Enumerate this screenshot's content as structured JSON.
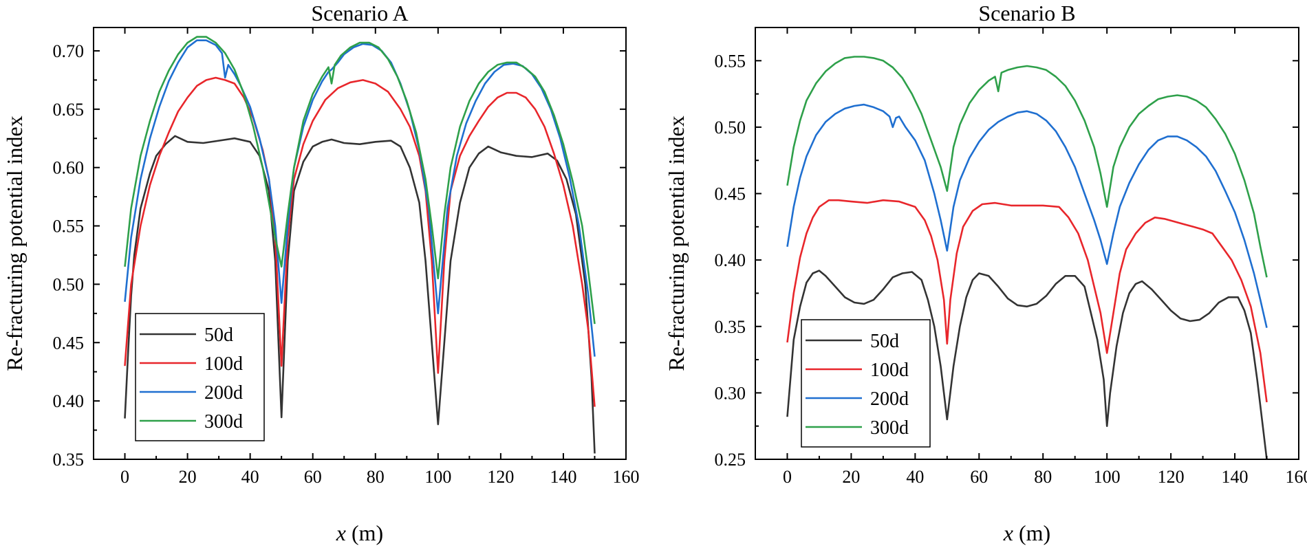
{
  "chart_data": [
    {
      "type": "line",
      "title": "Scenario A",
      "xlabel_var": "x",
      "xlabel_unit": " (m)",
      "ylabel": "Re-fracturing potential index",
      "xlim": [
        -10,
        160
      ],
      "ylim": [
        0.35,
        0.72
      ],
      "xticks": [
        0,
        20,
        40,
        60,
        80,
        100,
        120,
        140,
        160
      ],
      "yticks": [
        0.35,
        0.4,
        0.45,
        0.5,
        0.55,
        0.6,
        0.65,
        0.7
      ],
      "ytick_labels": [
        "0.35",
        "0.40",
        "0.45",
        "0.50",
        "0.55",
        "0.60",
        "0.65",
        "0.70"
      ],
      "legend_position": "bottom-left",
      "series": [
        {
          "name": "50d",
          "color": "#333333",
          "x": [
            0,
            1,
            2,
            3,
            5,
            8,
            10,
            13,
            16,
            20,
            25,
            30,
            35,
            40,
            43,
            46,
            48,
            50,
            52,
            54,
            57,
            60,
            63,
            66,
            70,
            75,
            80,
            85,
            88,
            91,
            94,
            96,
            98,
            100,
            102,
            104,
            107,
            110,
            113,
            116,
            120,
            125,
            130,
            135,
            138,
            141,
            144,
            147,
            149,
            150
          ],
          "y": [
            0.385,
            0.44,
            0.49,
            0.525,
            0.565,
            0.595,
            0.61,
            0.62,
            0.627,
            0.622,
            0.621,
            0.623,
            0.625,
            0.622,
            0.61,
            0.58,
            0.52,
            0.386,
            0.52,
            0.58,
            0.605,
            0.618,
            0.622,
            0.624,
            0.621,
            0.62,
            0.622,
            0.623,
            0.618,
            0.6,
            0.57,
            0.52,
            0.45,
            0.38,
            0.45,
            0.52,
            0.57,
            0.6,
            0.612,
            0.618,
            0.613,
            0.61,
            0.609,
            0.612,
            0.606,
            0.59,
            0.56,
            0.5,
            0.42,
            0.355
          ]
        },
        {
          "name": "100d",
          "color": "#E8262B",
          "x": [
            0,
            2,
            5,
            8,
            11,
            14,
            17,
            20,
            23,
            26,
            29,
            32,
            35,
            38,
            41,
            44,
            46,
            48,
            50,
            52,
            54,
            57,
            60,
            64,
            68,
            72,
            76,
            80,
            84,
            88,
            91,
            94,
            96,
            98,
            100,
            102,
            104,
            107,
            110,
            113,
            116,
            119,
            122,
            125,
            128,
            131,
            134,
            137,
            140,
            143,
            146,
            148,
            150
          ],
          "y": [
            0.43,
            0.5,
            0.55,
            0.585,
            0.61,
            0.63,
            0.648,
            0.66,
            0.67,
            0.675,
            0.677,
            0.675,
            0.672,
            0.66,
            0.642,
            0.615,
            0.59,
            0.54,
            0.43,
            0.54,
            0.59,
            0.62,
            0.64,
            0.658,
            0.668,
            0.673,
            0.675,
            0.672,
            0.665,
            0.65,
            0.635,
            0.61,
            0.58,
            0.52,
            0.424,
            0.52,
            0.58,
            0.61,
            0.627,
            0.64,
            0.652,
            0.66,
            0.664,
            0.664,
            0.66,
            0.65,
            0.635,
            0.612,
            0.585,
            0.55,
            0.5,
            0.46,
            0.395
          ]
        },
        {
          "name": "200d",
          "color": "#1F6FD0",
          "x": [
            0,
            2,
            5,
            8,
            11,
            14,
            17,
            20,
            23,
            26,
            29,
            31,
            32,
            33,
            35,
            37,
            40,
            43,
            46,
            48,
            50,
            52,
            54,
            57,
            60,
            63,
            65,
            66,
            68,
            70,
            73,
            76,
            79,
            82,
            85,
            88,
            91,
            94,
            97,
            100,
            103,
            106,
            109,
            112,
            115,
            118,
            121,
            124,
            127,
            130,
            133,
            136,
            139,
            142,
            145,
            148,
            150
          ],
          "y": [
            0.485,
            0.54,
            0.59,
            0.625,
            0.652,
            0.674,
            0.69,
            0.703,
            0.709,
            0.709,
            0.705,
            0.698,
            0.677,
            0.688,
            0.68,
            0.67,
            0.652,
            0.625,
            0.59,
            0.55,
            0.484,
            0.55,
            0.6,
            0.635,
            0.658,
            0.674,
            0.682,
            0.684,
            0.69,
            0.697,
            0.703,
            0.706,
            0.705,
            0.7,
            0.69,
            0.672,
            0.648,
            0.615,
            0.565,
            0.475,
            0.565,
            0.61,
            0.638,
            0.657,
            0.672,
            0.682,
            0.688,
            0.689,
            0.687,
            0.68,
            0.668,
            0.65,
            0.625,
            0.592,
            0.55,
            0.49,
            0.438
          ]
        },
        {
          "name": "300d",
          "color": "#2EA04A",
          "x": [
            0,
            2,
            5,
            8,
            11,
            14,
            17,
            20,
            23,
            26,
            29,
            32,
            35,
            38,
            41,
            44,
            46,
            48,
            50,
            52,
            54,
            57,
            60,
            63,
            65,
            66,
            67,
            69,
            72,
            75,
            78,
            81,
            84,
            87,
            90,
            93,
            96,
            98,
            100,
            102,
            104,
            107,
            110,
            113,
            116,
            119,
            122,
            125,
            128,
            131,
            134,
            137,
            140,
            143,
            146,
            148,
            150
          ],
          "y": [
            0.515,
            0.565,
            0.61,
            0.64,
            0.665,
            0.683,
            0.697,
            0.707,
            0.712,
            0.712,
            0.707,
            0.698,
            0.684,
            0.663,
            0.635,
            0.6,
            0.57,
            0.54,
            0.515,
            0.56,
            0.6,
            0.64,
            0.663,
            0.678,
            0.686,
            0.672,
            0.688,
            0.696,
            0.703,
            0.707,
            0.707,
            0.703,
            0.693,
            0.678,
            0.657,
            0.63,
            0.59,
            0.55,
            0.505,
            0.56,
            0.6,
            0.635,
            0.657,
            0.672,
            0.682,
            0.688,
            0.69,
            0.69,
            0.685,
            0.678,
            0.665,
            0.645,
            0.62,
            0.588,
            0.55,
            0.51,
            0.466
          ]
        }
      ]
    },
    {
      "type": "line",
      "title": "Scenario B",
      "xlabel_var": "x",
      "xlabel_unit": " (m)",
      "ylabel": "Re-fracturing potential index",
      "xlim": [
        -10,
        160
      ],
      "ylim": [
        0.25,
        0.575
      ],
      "xticks": [
        0,
        20,
        40,
        60,
        80,
        100,
        120,
        140,
        160
      ],
      "yticks": [
        0.25,
        0.3,
        0.35,
        0.4,
        0.45,
        0.5,
        0.55
      ],
      "ytick_labels": [
        "0.25",
        "0.30",
        "0.35",
        "0.40",
        "0.45",
        "0.50",
        "0.55"
      ],
      "legend_position": "bottom-left",
      "series": [
        {
          "name": "50d",
          "color": "#333333",
          "x": [
            0,
            2,
            4,
            6,
            8,
            10,
            12,
            15,
            18,
            21,
            24,
            27,
            30,
            33,
            36,
            39,
            42,
            44,
            46,
            48,
            50,
            52,
            54,
            56,
            58,
            60,
            63,
            66,
            69,
            72,
            75,
            78,
            81,
            84,
            87,
            90,
            93,
            95,
            97,
            99,
            100,
            101,
            103,
            105,
            107,
            109,
            111,
            114,
            117,
            120,
            123,
            126,
            129,
            132,
            135,
            138,
            141,
            143,
            145,
            147,
            149,
            150
          ],
          "y": [
            0.282,
            0.34,
            0.365,
            0.383,
            0.39,
            0.392,
            0.388,
            0.38,
            0.372,
            0.368,
            0.367,
            0.37,
            0.378,
            0.387,
            0.39,
            0.391,
            0.385,
            0.37,
            0.35,
            0.32,
            0.28,
            0.32,
            0.35,
            0.372,
            0.385,
            0.39,
            0.388,
            0.38,
            0.371,
            0.366,
            0.365,
            0.367,
            0.373,
            0.382,
            0.388,
            0.388,
            0.38,
            0.36,
            0.34,
            0.31,
            0.275,
            0.3,
            0.335,
            0.36,
            0.375,
            0.382,
            0.384,
            0.378,
            0.37,
            0.362,
            0.356,
            0.354,
            0.355,
            0.36,
            0.368,
            0.372,
            0.372,
            0.362,
            0.345,
            0.31,
            0.27,
            0.25
          ]
        },
        {
          "name": "100d",
          "color": "#E8262B",
          "x": [
            0,
            2,
            4,
            6,
            8,
            10,
            13,
            16,
            20,
            25,
            30,
            35,
            40,
            43,
            45,
            47,
            49,
            50,
            51,
            53,
            55,
            58,
            61,
            65,
            70,
            75,
            80,
            85,
            88,
            91,
            94,
            96,
            98,
            100,
            102,
            104,
            106,
            109,
            112,
            115,
            118,
            121,
            124,
            127,
            130,
            133,
            136,
            139,
            142,
            145,
            148,
            150
          ],
          "y": [
            0.338,
            0.375,
            0.402,
            0.42,
            0.432,
            0.44,
            0.445,
            0.445,
            0.444,
            0.443,
            0.445,
            0.444,
            0.44,
            0.43,
            0.418,
            0.4,
            0.37,
            0.337,
            0.37,
            0.405,
            0.425,
            0.437,
            0.442,
            0.443,
            0.441,
            0.441,
            0.441,
            0.44,
            0.432,
            0.42,
            0.4,
            0.38,
            0.36,
            0.33,
            0.36,
            0.39,
            0.408,
            0.42,
            0.428,
            0.432,
            0.431,
            0.429,
            0.427,
            0.425,
            0.423,
            0.42,
            0.41,
            0.4,
            0.385,
            0.365,
            0.33,
            0.293
          ]
        },
        {
          "name": "200d",
          "color": "#1F6FD0",
          "x": [
            0,
            2,
            4,
            6,
            9,
            12,
            15,
            18,
            21,
            24,
            27,
            30,
            32,
            33,
            34,
            35,
            37,
            40,
            43,
            46,
            48,
            50,
            52,
            54,
            57,
            60,
            63,
            66,
            69,
            72,
            75,
            78,
            81,
            84,
            87,
            90,
            93,
            96,
            98,
            100,
            102,
            104,
            107,
            110,
            113,
            116,
            119,
            122,
            125,
            128,
            131,
            134,
            137,
            140,
            143,
            146,
            148,
            150
          ],
          "y": [
            0.41,
            0.44,
            0.462,
            0.478,
            0.494,
            0.504,
            0.51,
            0.514,
            0.516,
            0.517,
            0.515,
            0.512,
            0.508,
            0.5,
            0.507,
            0.508,
            0.5,
            0.49,
            0.475,
            0.45,
            0.43,
            0.407,
            0.44,
            0.46,
            0.477,
            0.489,
            0.498,
            0.504,
            0.508,
            0.511,
            0.512,
            0.51,
            0.505,
            0.497,
            0.485,
            0.47,
            0.45,
            0.43,
            0.415,
            0.397,
            0.42,
            0.44,
            0.458,
            0.472,
            0.483,
            0.49,
            0.493,
            0.493,
            0.49,
            0.485,
            0.478,
            0.467,
            0.452,
            0.436,
            0.415,
            0.39,
            0.37,
            0.349
          ]
        },
        {
          "name": "300d",
          "color": "#2EA04A",
          "x": [
            0,
            2,
            4,
            6,
            9,
            12,
            15,
            18,
            21,
            24,
            27,
            30,
            33,
            36,
            39,
            42,
            45,
            48,
            50,
            52,
            54,
            57,
            60,
            63,
            65,
            66,
            67,
            69,
            72,
            75,
            78,
            81,
            84,
            87,
            90,
            93,
            96,
            98,
            100,
            102,
            104,
            107,
            110,
            113,
            116,
            119,
            122,
            125,
            128,
            131,
            134,
            137,
            140,
            143,
            146,
            148,
            150
          ],
          "y": [
            0.456,
            0.485,
            0.505,
            0.52,
            0.533,
            0.542,
            0.548,
            0.552,
            0.553,
            0.553,
            0.552,
            0.55,
            0.545,
            0.537,
            0.525,
            0.51,
            0.49,
            0.47,
            0.452,
            0.485,
            0.502,
            0.518,
            0.528,
            0.535,
            0.538,
            0.527,
            0.541,
            0.543,
            0.545,
            0.546,
            0.545,
            0.543,
            0.538,
            0.531,
            0.52,
            0.505,
            0.485,
            0.465,
            0.44,
            0.47,
            0.485,
            0.5,
            0.51,
            0.516,
            0.521,
            0.523,
            0.524,
            0.523,
            0.52,
            0.515,
            0.506,
            0.495,
            0.48,
            0.46,
            0.435,
            0.41,
            0.387
          ]
        }
      ]
    }
  ]
}
